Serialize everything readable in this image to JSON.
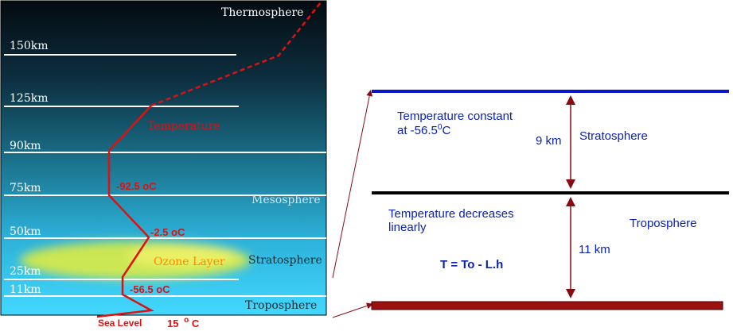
{
  "left_panel": {
    "altitudes": [
      {
        "label": "150km"
      },
      {
        "label": "125km"
      },
      {
        "label": "90km"
      },
      {
        "label": "75km"
      },
      {
        "label": "50km"
      },
      {
        "label": "25km"
      },
      {
        "label": "11km"
      }
    ],
    "layers": {
      "thermosphere": "Thermosphere",
      "mesosphere": "Mesosphere",
      "stratosphere": "Stratosphere",
      "troposphere": "Troposphere"
    },
    "ozone_label": "Ozone Layer",
    "temperature_label": "Temperature",
    "temps": {
      "t92": "-92.5 oC",
      "t2": "-2.5 oC",
      "t56": "-56.5 oC"
    },
    "sea_level": "Sea Level",
    "sea_temp_value": "15",
    "sea_temp_unit_sup": "o",
    "sea_temp_unit": "C"
  },
  "right_panel": {
    "strato_text_line1": "Temperature constant",
    "strato_text_line2_prefix": "at -56.5",
    "strato_text_line2_sup": "0",
    "strato_text_line2_suffix": "C",
    "strato_thickness": "9 km",
    "strato_name": "Stratosphere",
    "tropo_text_line1": "Temperature decreases",
    "tropo_text_line2": "linearly",
    "tropo_name": "Troposphere",
    "tropo_thickness": "11 km",
    "formula": "T = To - L.h"
  },
  "colors": {
    "sky_top": "#040b10",
    "sky_bottom": "#3fd6ff",
    "temperature_line": "#e01010",
    "blue_text": "#0a22b8",
    "tropopause": "#000000",
    "stratopause": "#0a14c8",
    "ground": "#9b1010",
    "arrow": "#8a0a14"
  }
}
